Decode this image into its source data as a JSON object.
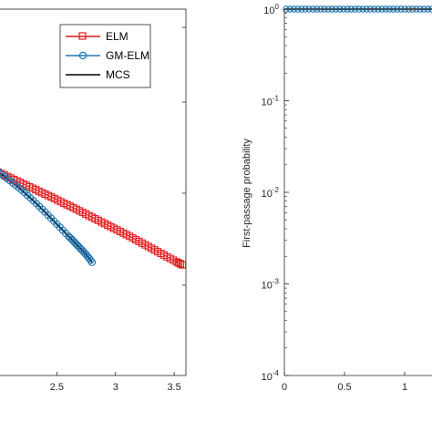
{
  "chart_data": [
    {
      "type": "line",
      "xlabel": "",
      "ylabel": "",
      "xlim": [
        2.0,
        3.6
      ],
      "x_ticks": [
        "2.5",
        "3",
        "3.5"
      ],
      "x_tick_values": [
        2.5,
        3.0,
        3.5
      ],
      "legend": {
        "position": "top-right",
        "entries": [
          "ELM",
          "GM-ELM",
          "MCS"
        ]
      },
      "series": [
        {
          "name": "ELM",
          "color": "#e41a1c",
          "marker": "square",
          "points": [
            [
              2.0,
              0.555
            ],
            [
              2.08,
              0.543
            ],
            [
              2.16,
              0.531
            ],
            [
              2.24,
              0.519
            ],
            [
              2.32,
              0.507
            ],
            [
              2.4,
              0.495
            ],
            [
              2.48,
              0.483
            ],
            [
              2.56,
              0.47
            ],
            [
              2.64,
              0.458
            ],
            [
              2.72,
              0.445
            ],
            [
              2.8,
              0.432
            ],
            [
              2.88,
              0.419
            ],
            [
              2.96,
              0.406
            ],
            [
              3.04,
              0.393
            ],
            [
              3.12,
              0.38
            ],
            [
              3.2,
              0.366
            ],
            [
              3.28,
              0.352
            ],
            [
              3.36,
              0.338
            ],
            [
              3.44,
              0.324
            ],
            [
              3.52,
              0.31
            ],
            [
              3.57,
              0.302
            ]
          ]
        },
        {
          "name": "GM-ELM",
          "color": "#1f77b4",
          "marker": "circle",
          "points": [
            [
              2.0,
              0.555
            ],
            [
              2.1,
              0.532
            ],
            [
              2.2,
              0.506
            ],
            [
              2.3,
              0.477
            ],
            [
              2.4,
              0.446
            ],
            [
              2.5,
              0.413
            ],
            [
              2.6,
              0.38
            ],
            [
              2.65,
              0.364
            ],
            [
              2.7,
              0.347
            ],
            [
              2.75,
              0.33
            ],
            [
              2.8,
              0.309
            ]
          ]
        },
        {
          "name": "MCS",
          "color": "#000000",
          "marker": "none",
          "points": [
            [
              2.0,
              0.555
            ],
            [
              2.1,
              0.532
            ],
            [
              2.2,
              0.506
            ],
            [
              2.3,
              0.477
            ],
            [
              2.4,
              0.446
            ],
            [
              2.5,
              0.413
            ],
            [
              2.6,
              0.38
            ],
            [
              2.65,
              0.364
            ],
            [
              2.7,
              0.347
            ],
            [
              2.75,
              0.33
            ],
            [
              2.8,
              0.309
            ]
          ]
        }
      ]
    },
    {
      "type": "line",
      "xlabel": "",
      "ylabel": "First-passage probability",
      "y_scale": "log",
      "ylim": [
        0.0001,
        1
      ],
      "xlim": [
        0,
        1.5
      ],
      "x_ticks": [
        "0",
        "0.5",
        "1"
      ],
      "x_tick_values": [
        0,
        0.5,
        1
      ],
      "y_ticks": [
        {
          "value": 1,
          "base": "10",
          "exp": "0"
        },
        {
          "value": 0.1,
          "base": "10",
          "exp": "-1"
        },
        {
          "value": 0.01,
          "base": "10",
          "exp": "-2"
        },
        {
          "value": 0.001,
          "base": "10",
          "exp": "-3"
        },
        {
          "value": 0.0001,
          "base": "10",
          "exp": "-4"
        }
      ],
      "series": [
        {
          "name": "",
          "color": "#1f77b4",
          "marker": "circle",
          "points": [
            [
              0,
              1
            ],
            [
              1.5,
              1
            ]
          ]
        }
      ]
    }
  ]
}
